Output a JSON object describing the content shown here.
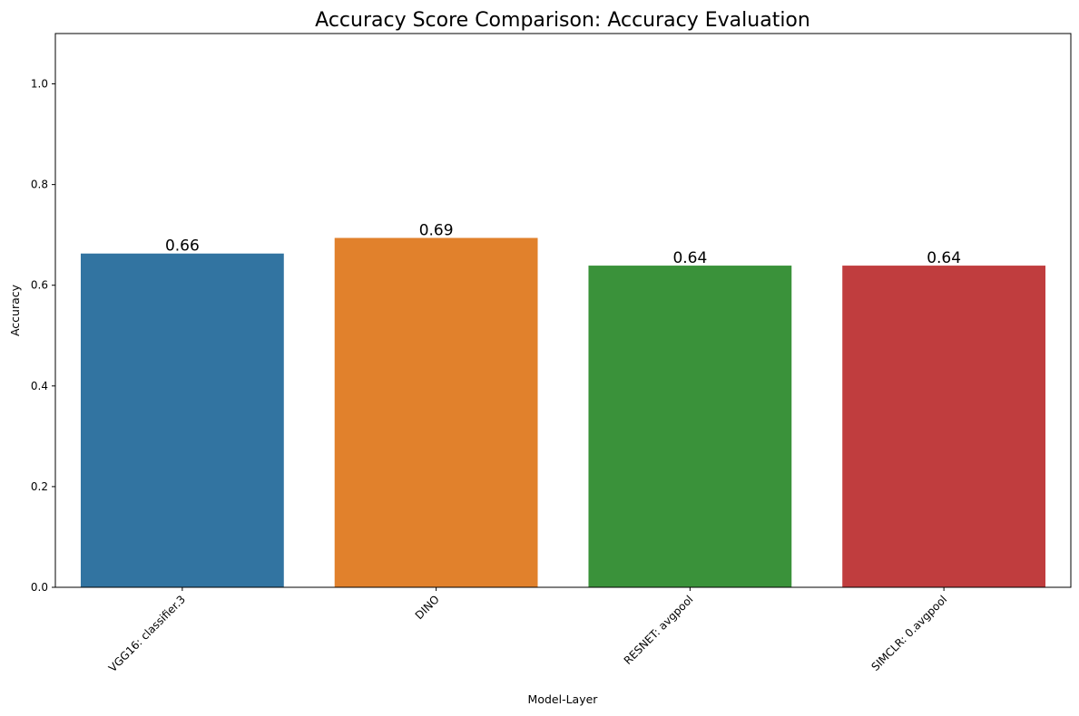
{
  "chart_data": {
    "type": "bar",
    "title": "Accuracy Score Comparison: Accuracy Evaluation",
    "xlabel": "Model-Layer",
    "ylabel": "Accuracy",
    "categories": [
      "VGG16: classifier.3",
      "DINO",
      "RESNET: avgpool",
      "SIMCLR: 0.avgpool"
    ],
    "values": [
      0.663,
      0.694,
      0.639,
      0.639
    ],
    "data_labels": [
      "0.66",
      "0.69",
      "0.64",
      "0.64"
    ],
    "colors": [
      "#3274a1",
      "#e1812c",
      "#3a923a",
      "#c03d3e"
    ],
    "ylim": [
      0,
      1.1
    ],
    "yticks": [
      0.0,
      0.2,
      0.4,
      0.6,
      0.8,
      1.0
    ],
    "ytick_labels": [
      "0.0",
      "0.2",
      "0.4",
      "0.6",
      "0.8",
      "1.0"
    ],
    "grid": false,
    "legend": "none"
  }
}
